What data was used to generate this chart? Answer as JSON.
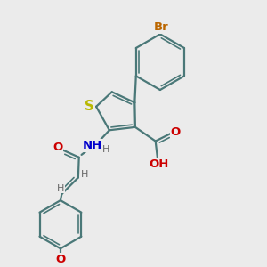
{
  "background_color": "#ebebeb",
  "bond_color": "#4a7878",
  "s_color": "#b8b800",
  "n_color": "#0000cc",
  "o_color": "#cc0000",
  "br_color": "#bb6600",
  "h_color": "#666666",
  "line_width": 1.6,
  "figsize": [
    3.0,
    3.0
  ],
  "dpi": 100,
  "xlim": [
    0,
    10
  ],
  "ylim": [
    0,
    10
  ]
}
